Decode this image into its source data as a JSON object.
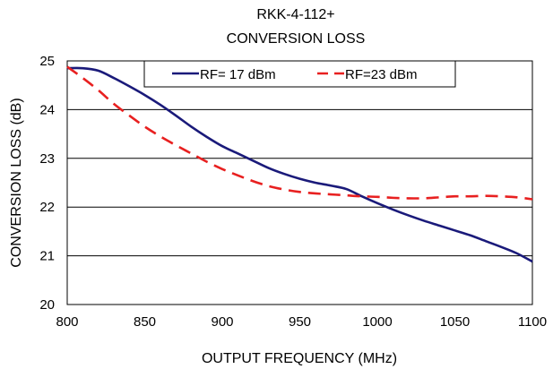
{
  "chart_data": {
    "type": "line",
    "title": "RKK-4-112+",
    "subtitle": "CONVERSION LOSS",
    "xlabel": "OUTPUT FREQUENCY (MHz)",
    "ylabel": "CONVERSION LOSS (dB)",
    "xlim": [
      800,
      1100
    ],
    "ylim": [
      20,
      25
    ],
    "xticks": [
      800,
      850,
      900,
      950,
      1000,
      1050,
      1100
    ],
    "yticks": [
      20,
      21,
      22,
      23,
      24,
      25
    ],
    "grid": "horizontal",
    "legend_position": "top",
    "series": [
      {
        "name": "RF= 17 dBm",
        "color": "#1a1a7a",
        "style": "solid",
        "x": [
          800,
          810,
          820,
          830,
          840,
          850,
          860,
          870,
          880,
          890,
          900,
          910,
          920,
          930,
          940,
          950,
          960,
          970,
          980,
          990,
          1000,
          1010,
          1020,
          1030,
          1040,
          1050,
          1060,
          1070,
          1080,
          1090,
          1100
        ],
        "y": [
          24.85,
          24.85,
          24.8,
          24.65,
          24.48,
          24.3,
          24.1,
          23.88,
          23.65,
          23.44,
          23.25,
          23.1,
          22.95,
          22.8,
          22.68,
          22.58,
          22.5,
          22.44,
          22.37,
          22.22,
          22.08,
          21.95,
          21.83,
          21.72,
          21.62,
          21.52,
          21.42,
          21.3,
          21.18,
          21.05,
          20.88
        ]
      },
      {
        "name": "RF=23 dBm",
        "color": "#e82020",
        "style": "dashed",
        "x": [
          800,
          810,
          820,
          830,
          840,
          850,
          860,
          870,
          880,
          890,
          900,
          910,
          920,
          930,
          940,
          950,
          960,
          970,
          980,
          990,
          1000,
          1010,
          1020,
          1030,
          1040,
          1050,
          1060,
          1070,
          1080,
          1090,
          1100
        ],
        "y": [
          24.88,
          24.65,
          24.4,
          24.12,
          23.88,
          23.65,
          23.45,
          23.27,
          23.1,
          22.93,
          22.78,
          22.65,
          22.53,
          22.43,
          22.36,
          22.31,
          22.28,
          22.26,
          22.24,
          22.22,
          22.21,
          22.19,
          22.18,
          22.18,
          22.2,
          22.22,
          22.22,
          22.23,
          22.22,
          22.2,
          22.16
        ]
      }
    ]
  }
}
